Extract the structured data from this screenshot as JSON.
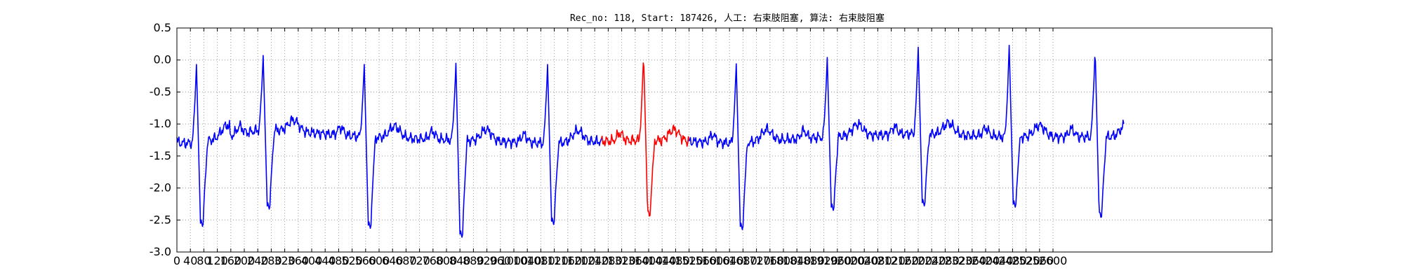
{
  "chart_data": {
    "type": "line",
    "title": "Rec_no: 118, Start: 187426, 人工: 右束肢阻塞, 算法: 右束肢阻塞",
    "xlabel": "",
    "ylabel": "",
    "xlim": [
      0,
      3250
    ],
    "ylim": [
      -3.0,
      0.5
    ],
    "grid": true,
    "y_ticks": [
      "-3.0",
      "-2.5",
      "-2.0",
      "-1.5",
      "-1.0",
      "-0.5",
      "0.0",
      "0.5"
    ],
    "x_ticks": [
      "0",
      "40",
      "80",
      "120",
      "160",
      "200",
      "240",
      "280",
      "320",
      "360",
      "400",
      "440",
      "480",
      "520",
      "560",
      "600",
      "640",
      "680",
      "720",
      "760",
      "800",
      "840",
      "880",
      "920",
      "960",
      "1000",
      "1040",
      "1080",
      "1120",
      "1160",
      "1200",
      "1240",
      "1280",
      "1320",
      "1360",
      "1400",
      "1440",
      "1480",
      "1520",
      "1560",
      "1600",
      "1640",
      "1680",
      "1720",
      "1760",
      "1800",
      "1840",
      "1880",
      "1920",
      "1960",
      "2000",
      "2040",
      "2080",
      "2120",
      "2160",
      "2200",
      "2240",
      "2280",
      "2320",
      "2360",
      "2400",
      "2440",
      "2480",
      "2520",
      "2560",
      "2600"
    ],
    "beats": [
      {
        "r": 58,
        "baseline": -1.3,
        "r_peak": -0.07,
        "s_min": -2.55
      },
      {
        "r": 256,
        "baseline": -1.08,
        "r_peak": 0.07,
        "s_min": -2.28
      },
      {
        "r": 556,
        "baseline": -1.2,
        "r_peak": -0.07,
        "s_min": -2.58
      },
      {
        "r": 828,
        "baseline": -1.25,
        "r_peak": -0.05,
        "s_min": -2.72
      },
      {
        "r": 1100,
        "baseline": -1.3,
        "r_peak": -0.07,
        "s_min": -2.52
      },
      {
        "r": 1385,
        "baseline": -1.25,
        "r_peak": 0.1,
        "s_min": -2.4
      },
      {
        "r": 1660,
        "baseline": -1.3,
        "r_peak": -0.06,
        "s_min": -2.6
      },
      {
        "r": 1930,
        "baseline": -1.2,
        "r_peak": 0.04,
        "s_min": -2.3
      },
      {
        "r": 2200,
        "baseline": -1.15,
        "r_peak": 0.2,
        "s_min": -2.23
      },
      {
        "r": 2470,
        "baseline": -1.2,
        "r_peak": 0.23,
        "s_min": -2.25
      },
      {
        "r": 2725,
        "baseline": -1.2,
        "r_peak": 0.2,
        "s_min": -2.42
      }
    ],
    "series": [
      {
        "color": "#0000ff",
        "x_range": [
          0,
          1260
        ]
      },
      {
        "color": "#ff0000",
        "x_range": [
          1260,
          1520
        ]
      },
      {
        "color": "#0000ff",
        "x_range": [
          1520,
          2810
        ]
      }
    ]
  }
}
